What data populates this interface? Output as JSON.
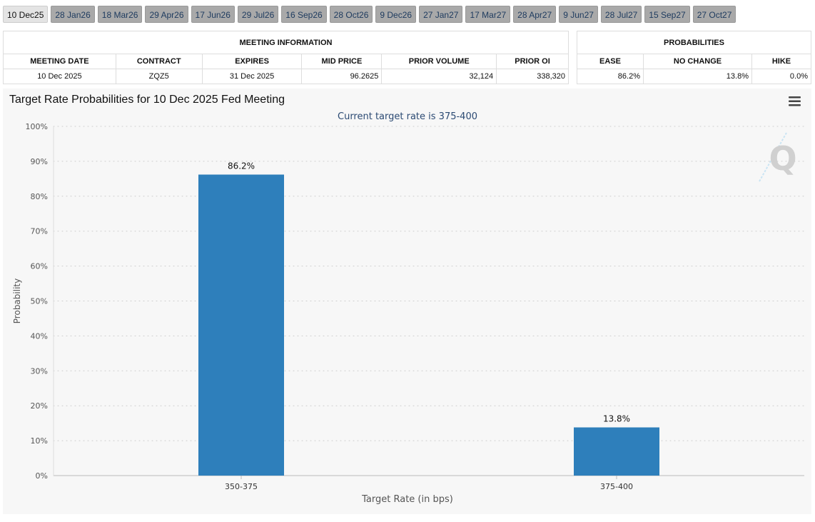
{
  "tabs": [
    "10 Dec25",
    "28 Jan26",
    "18 Mar26",
    "29 Apr26",
    "17 Jun26",
    "29 Jul26",
    "16 Sep26",
    "28 Oct26",
    "9 Dec26",
    "27 Jan27",
    "17 Mar27",
    "28 Apr27",
    "9 Jun27",
    "28 Jul27",
    "15 Sep27",
    "27 Oct27"
  ],
  "meeting_info": {
    "title": "MEETING INFORMATION",
    "headers": [
      "MEETING DATE",
      "CONTRACT",
      "EXPIRES",
      "MID PRICE",
      "PRIOR VOLUME",
      "PRIOR OI"
    ],
    "row": [
      "10 Dec 2025",
      "ZQZ5",
      "31 Dec 2025",
      "96.2625",
      "32,124",
      "338,320"
    ]
  },
  "probabilities": {
    "title": "PROBABILITIES",
    "headers": [
      "EASE",
      "NO CHANGE",
      "HIKE"
    ],
    "row": [
      "86.2%",
      "13.8%",
      "0.0%"
    ]
  },
  "chart_data": {
    "type": "bar",
    "title": "Target Rate Probabilities for 10 Dec 2025 Fed Meeting",
    "subtitle": "Current target rate is 375-400",
    "x_label": "Target Rate (in bps)",
    "y_label": "Probability",
    "categories": [
      "350-375",
      "375-400"
    ],
    "values": [
      86.2,
      13.8
    ],
    "value_labels": [
      "86.2%",
      "13.8%"
    ],
    "color": "#2e7fbb",
    "ylim": [
      0,
      100
    ],
    "yticks": [
      {
        "value": 0,
        "label": "0%"
      },
      {
        "value": 10,
        "label": "10%"
      },
      {
        "value": 20,
        "label": "20%"
      },
      {
        "value": 30,
        "label": "30%"
      },
      {
        "value": 40,
        "label": "40%"
      },
      {
        "value": 50,
        "label": "50%"
      },
      {
        "value": 60,
        "label": "60%"
      },
      {
        "value": 70,
        "label": "70%"
      },
      {
        "value": 80,
        "label": "80%"
      },
      {
        "value": 90,
        "label": "90%"
      },
      {
        "value": 100,
        "label": "100%"
      }
    ],
    "grid": true
  }
}
